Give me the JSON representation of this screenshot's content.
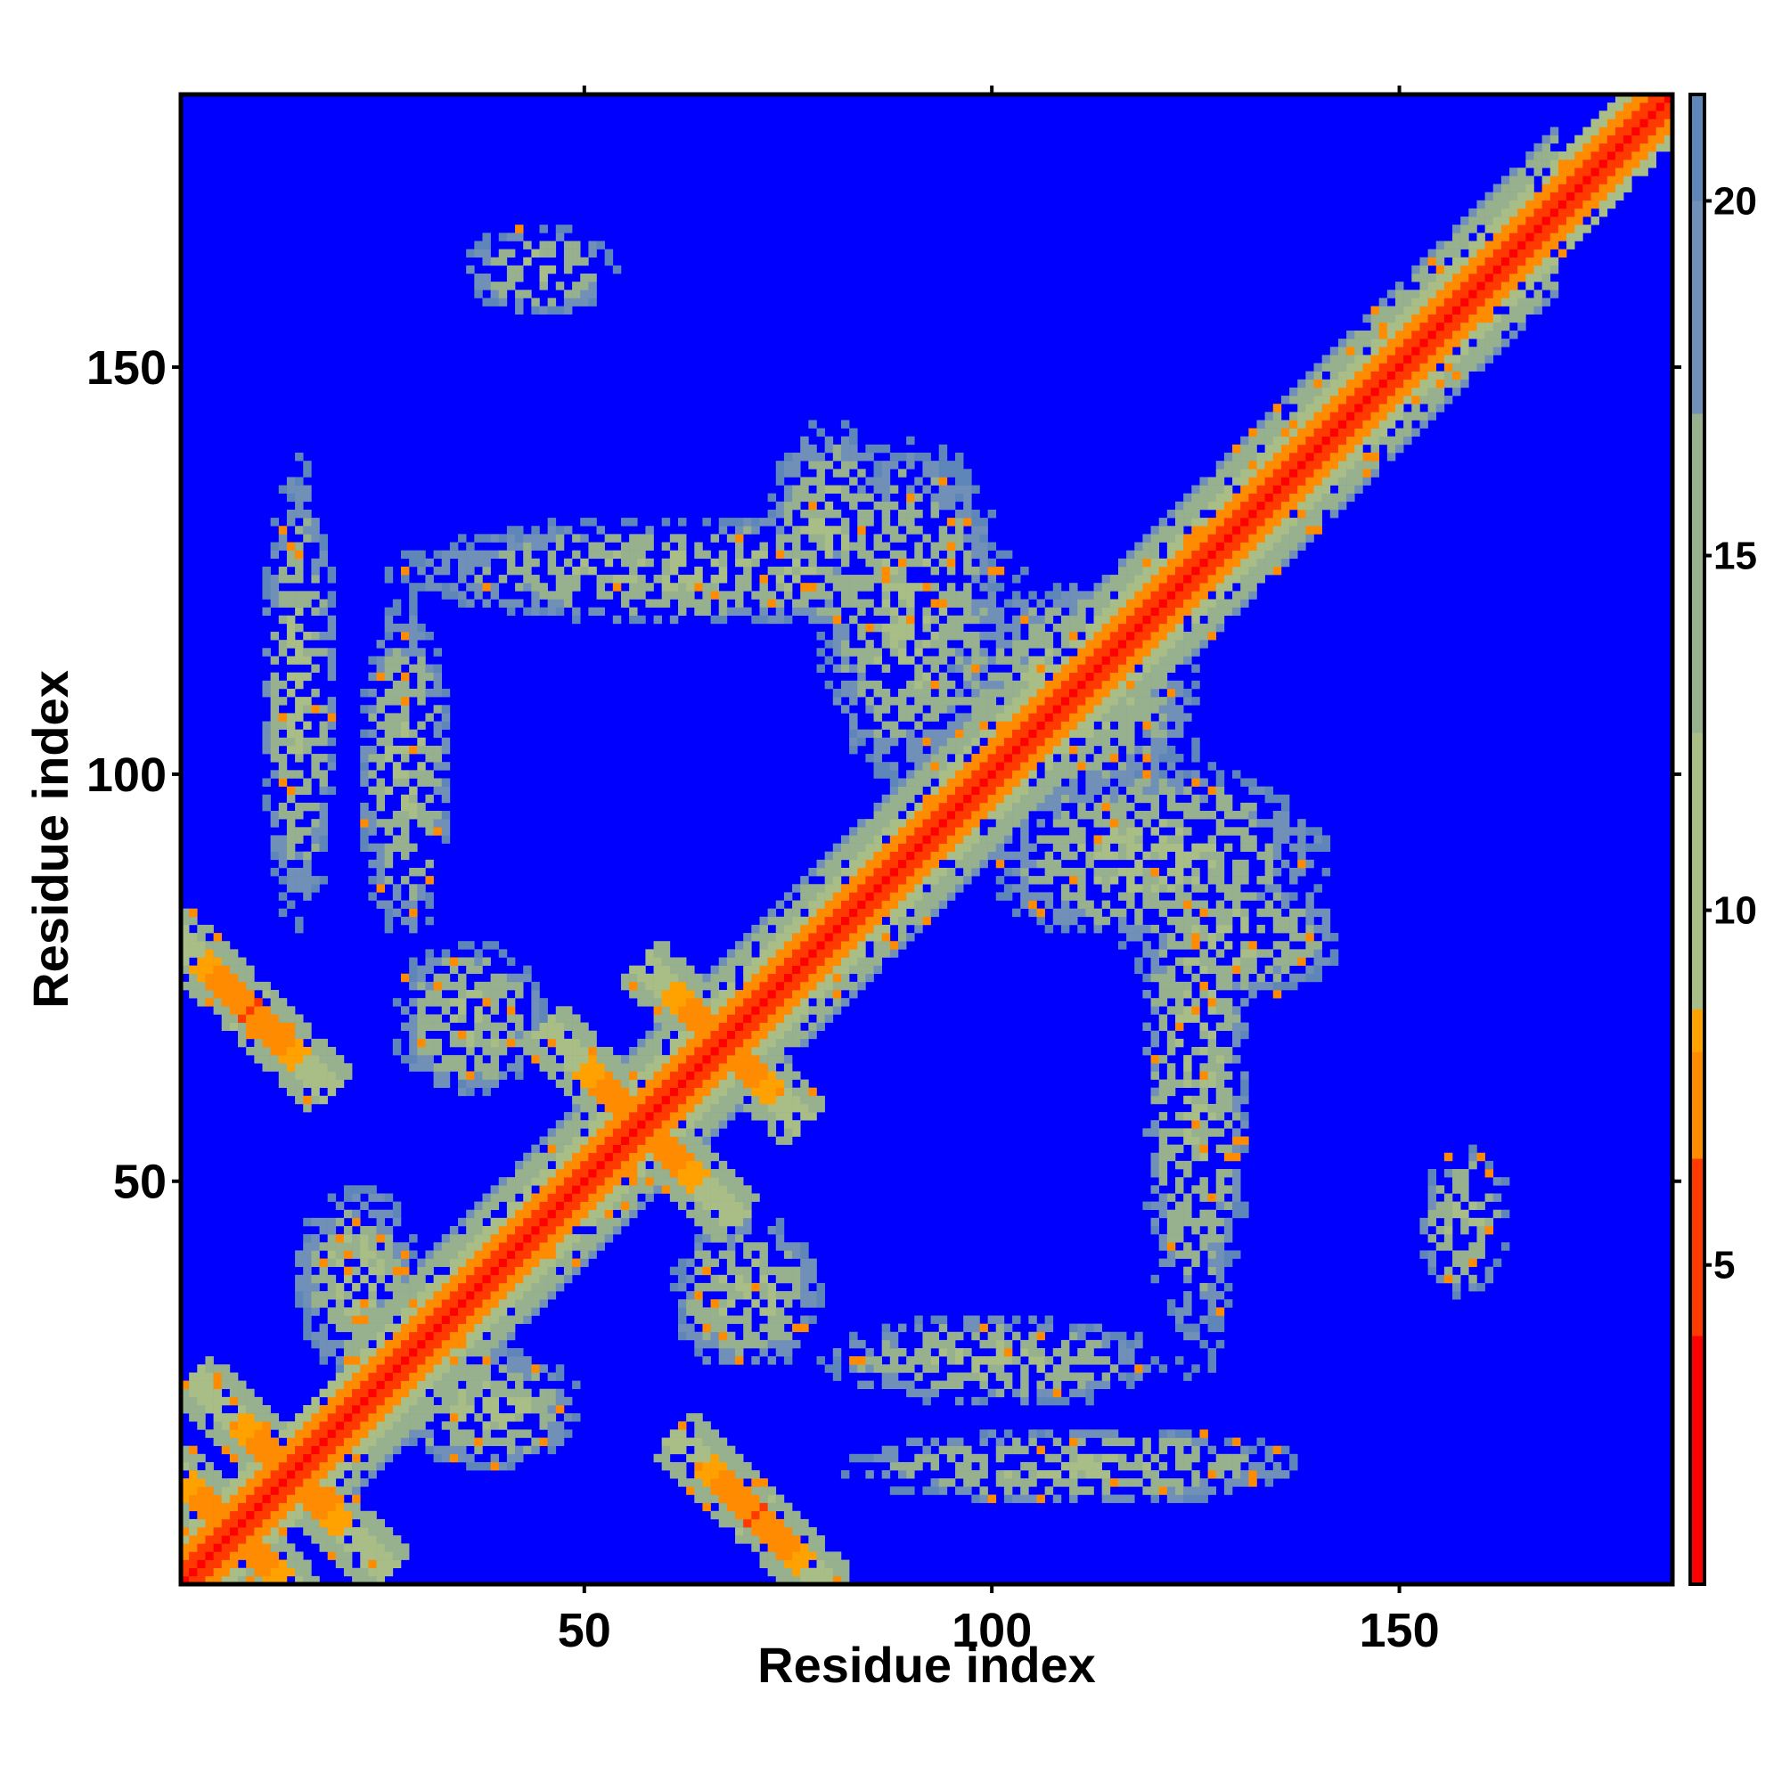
{
  "chart_data": {
    "type": "heatmap",
    "title": "",
    "xlabel": "Residue index",
    "ylabel": "Residue index",
    "xlim": [
      1,
      183
    ],
    "ylim": [
      1,
      183
    ],
    "x_ticks": [
      50,
      100,
      150
    ],
    "y_ticks": [
      50,
      100,
      150
    ],
    "n_residues": 183,
    "colorbar": {
      "ticks": [
        5,
        10,
        15,
        20
      ],
      "range": [
        0.5,
        21.5
      ],
      "stops": [
        {
          "value": 0.5,
          "color": "#ff0000"
        },
        {
          "value": 4.0,
          "color": "#ff3a00"
        },
        {
          "value": 6.5,
          "color": "#ff8c00"
        },
        {
          "value": 8.0,
          "color": "#ffa200"
        },
        {
          "value": 8.6,
          "color": "#a9bd86"
        },
        {
          "value": 12.5,
          "color": "#97b08e"
        },
        {
          "value": 17.0,
          "color": "#7090b8"
        },
        {
          "value": 20.0,
          "color": "#5f86b8"
        },
        {
          "value": 21.5,
          "color": "#0000ff"
        }
      ]
    },
    "background_color": "#0000ff",
    "contact_patterns": [
      {
        "kind": "diagonal",
        "description": "main diagonal, i = j"
      },
      {
        "kind": "parallel",
        "i_range": [
          25,
          160
        ],
        "description": "bands along diagonal"
      },
      {
        "kind": "antiparallel",
        "center": [
          14,
          14
        ],
        "length": 12
      },
      {
        "kind": "antiparallel",
        "center": [
          57,
          57
        ],
        "length": 12
      },
      {
        "kind": "antiparallel",
        "center": [
          67,
          67
        ],
        "length": 10
      },
      {
        "kind": "antiparallel",
        "center": [
          9,
          71
        ],
        "length": 10
      },
      {
        "kind": "antiparallel",
        "center": [
          70,
          8
        ],
        "length": 10
      },
      {
        "kind": "arc",
        "center": [
          65,
          125
        ],
        "description": "upper-left loop cluster"
      },
      {
        "kind": "arc",
        "center": [
          125,
          65
        ],
        "description": "lower-right loop cluster"
      },
      {
        "kind": "patch",
        "center": [
          45,
          162
        ]
      },
      {
        "kind": "patch",
        "center": [
          158,
          45
        ]
      }
    ]
  }
}
